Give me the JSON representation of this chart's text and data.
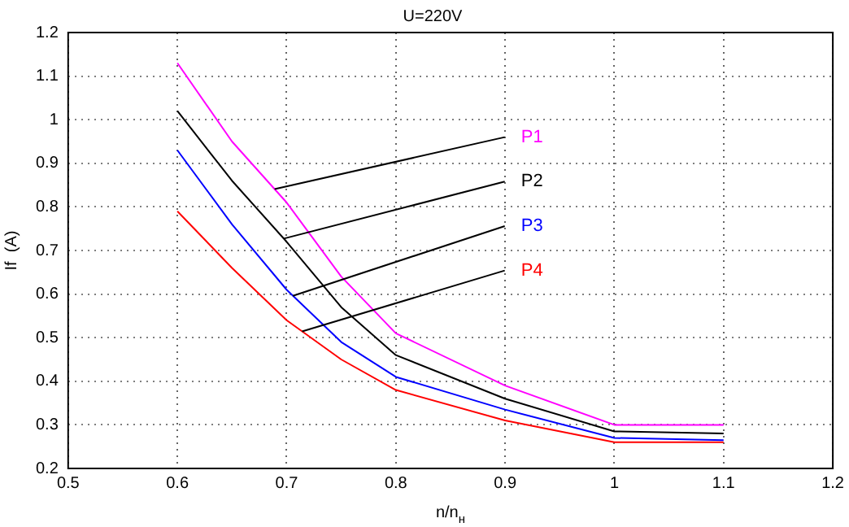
{
  "chart_data": {
    "type": "line",
    "title": "U=220V",
    "xlabel": "n/n$_{н}$",
    "ylabel": "If  (A)",
    "x": [
      0.6,
      0.65,
      0.7,
      0.75,
      0.8,
      0.9,
      1.0,
      1.1
    ],
    "series": [
      {
        "name": "P1",
        "color": "#ff00ff",
        "values": [
          1.13,
          0.95,
          0.81,
          0.64,
          0.51,
          0.39,
          0.3,
          0.3
        ]
      },
      {
        "name": "P2",
        "color": "#000000",
        "values": [
          1.02,
          0.86,
          0.72,
          0.57,
          0.46,
          0.36,
          0.285,
          0.28
        ]
      },
      {
        "name": "P3",
        "color": "#0000ff",
        "values": [
          0.93,
          0.76,
          0.61,
          0.49,
          0.41,
          0.335,
          0.27,
          0.265
        ]
      },
      {
        "name": "P4",
        "color": "#ff0000",
        "values": [
          0.79,
          0.66,
          0.54,
          0.45,
          0.38,
          0.31,
          0.26,
          0.26
        ]
      }
    ],
    "xlim": [
      0.5,
      1.2
    ],
    "xticks": [
      0.5,
      0.6,
      0.7,
      0.8,
      0.9,
      1,
      1.1,
      1.2
    ],
    "ylim": [
      0.2,
      1.2
    ],
    "yticks": [
      0.2,
      0.3,
      0.4,
      0.5,
      0.6,
      0.7,
      0.8,
      0.9,
      1,
      1.1,
      1.2
    ],
    "grid": true,
    "legend": false,
    "marker": "none",
    "line_style": "solid"
  }
}
